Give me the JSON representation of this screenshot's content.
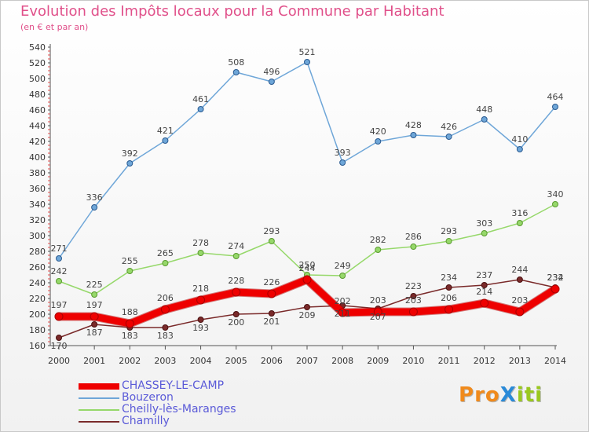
{
  "title": "Evolution des Impôts locaux pour la Commune par Habitant",
  "subtitle": "(en € et par an)",
  "logo": {
    "text": "ProXiti",
    "letters": [
      "P",
      "r",
      "o",
      "X",
      "i",
      "t",
      "i"
    ],
    "colors": [
      "#f08a1c",
      "#f08a1c",
      "#f08a1c",
      "#2a8ad8",
      "#9ac81e",
      "#9ac81e",
      "#9ac81e"
    ]
  },
  "chart_data": {
    "type": "line",
    "title": "Evolution des Impôts locaux pour la Commune par Habitant",
    "subtitle": "(en € et par an)",
    "xlabel": "",
    "ylabel": "",
    "categories": [
      "2000",
      "2001",
      "2002",
      "2003",
      "2004",
      "2005",
      "2006",
      "2007",
      "2008",
      "2009",
      "2010",
      "2011",
      "2012",
      "2013",
      "2014"
    ],
    "ylim": [
      160,
      540
    ],
    "yticks": [
      160,
      180,
      200,
      220,
      240,
      260,
      280,
      300,
      320,
      340,
      360,
      380,
      400,
      420,
      440,
      460,
      480,
      500,
      520,
      540
    ],
    "grid": false,
    "legend": "bottom-left",
    "series": [
      {
        "name": "CHASSEY-LE-CAMP",
        "color": "#ee0000",
        "width": 9,
        "values": [
          197,
          197,
          188,
          206,
          218,
          228,
          226,
          244,
          202,
          203,
          203,
          206,
          214,
          203,
          232
        ]
      },
      {
        "name": "Bouzeron",
        "color": "#6ea6d8",
        "width": 1.5,
        "values": [
          271,
          336,
          392,
          421,
          461,
          508,
          496,
          521,
          393,
          420,
          428,
          426,
          448,
          410,
          464
        ]
      },
      {
        "name": "Cheilly-lès-Maranges",
        "color": "#96d86a",
        "width": 1.5,
        "values": [
          242,
          225,
          255,
          265,
          278,
          274,
          293,
          250,
          249,
          282,
          286,
          293,
          303,
          316,
          340
        ]
      },
      {
        "name": "Chamilly",
        "color": "#7a2a2a",
        "width": 1.5,
        "values": [
          170,
          187,
          183,
          183,
          193,
          200,
          201,
          209,
          211,
          207,
          223,
          234,
          237,
          244,
          234
        ]
      }
    ]
  }
}
